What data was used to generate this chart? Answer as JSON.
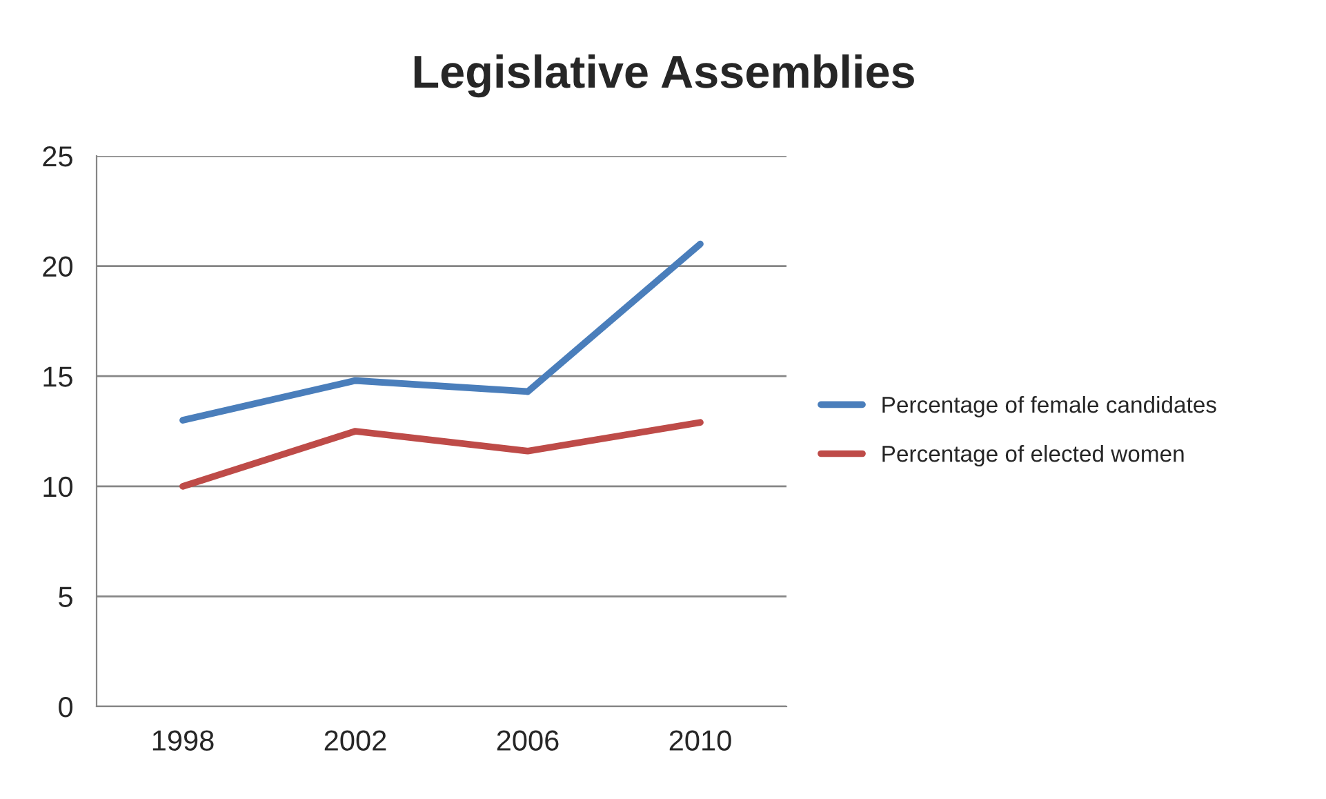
{
  "chart_data": {
    "type": "line",
    "title": "Legislative Assemblies",
    "categories": [
      "1998",
      "2002",
      "2006",
      "2010"
    ],
    "series": [
      {
        "name": "Percentage of female candidates",
        "color": "#4a7ebb",
        "values": [
          13.0,
          14.8,
          14.3,
          21.0
        ]
      },
      {
        "name": "Percentage of elected women",
        "color": "#be4b48",
        "values": [
          10.0,
          12.5,
          11.6,
          12.9
        ]
      }
    ],
    "ylim": [
      0,
      25
    ],
    "yticks": [
      0,
      5,
      10,
      15,
      20,
      25
    ],
    "grid": "y",
    "legend": "right",
    "marker": "none",
    "line_style": "solid"
  }
}
